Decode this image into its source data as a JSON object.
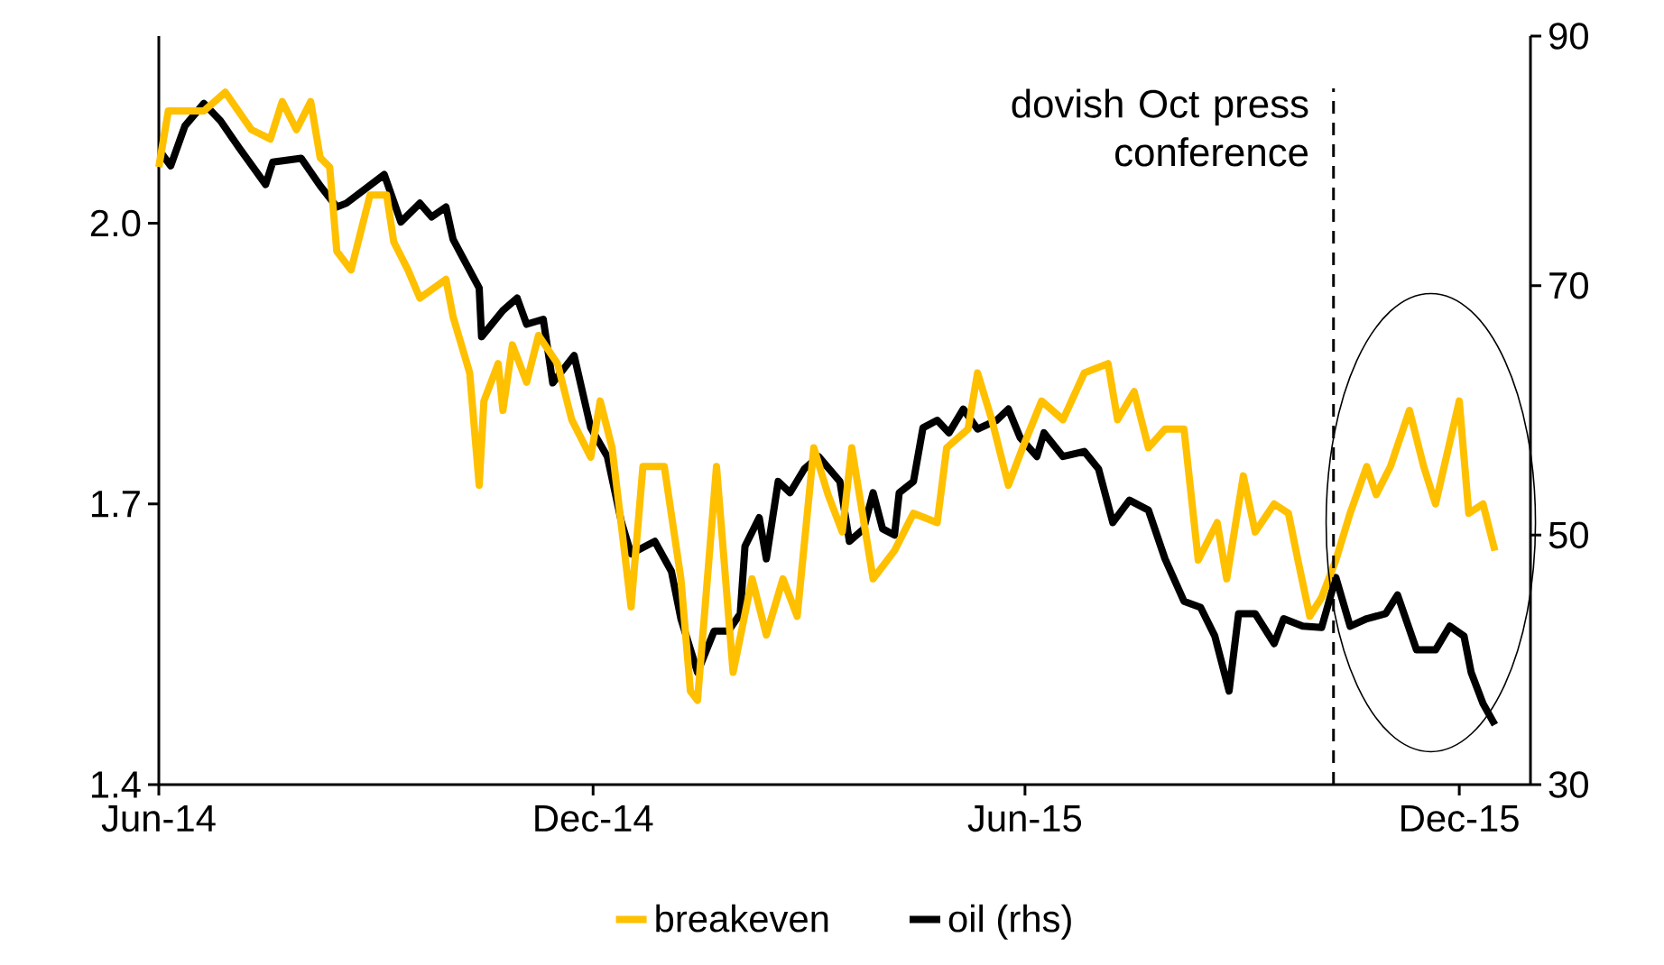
{
  "chart_data": {
    "type": "line",
    "xlim": [
      "2014-06-01",
      "2015-12-31"
    ],
    "xticks": [
      {
        "value": "2014-06-01",
        "label": "Jun-14"
      },
      {
        "value": "2014-12-01",
        "label": "Dec-14"
      },
      {
        "value": "2015-06-01",
        "label": "Jun-15"
      },
      {
        "value": "2015-12-01",
        "label": "Dec-15"
      }
    ],
    "ylim": [
      1.4,
      2.2
    ],
    "yticks": [
      1.4,
      1.7,
      {
        "value": 2,
        "label": "2.0"
      }
    ],
    "y2lim": [
      30,
      90
    ],
    "y2ticks": [
      30,
      50,
      70,
      90
    ],
    "legend": "bottom",
    "line_style": "solid",
    "marker": "none",
    "ref_lines": [
      {
        "axis": "x",
        "value": "2015-10-09",
        "label": "dovish Oct press conference",
        "line_style": "dashed",
        "color": "#000000"
      }
    ],
    "series": [
      {
        "name": "breakeven",
        "color": "#ffc000",
        "x": [
          "2014-06-01",
          "2014-06-05",
          "2014-06-20",
          "2014-06-29",
          "2014-07-10",
          "2014-07-18",
          "2014-07-23",
          "2014-07-29",
          "2014-08-04",
          "2014-08-08",
          "2014-08-12",
          "2014-08-15",
          "2014-08-21",
          "2014-08-29",
          "2014-09-05",
          "2014-09-08",
          "2014-09-14",
          "2014-09-19",
          "2014-09-30",
          "2014-10-03",
          "2014-10-10",
          "2014-10-14",
          "2014-10-16",
          "2014-10-22",
          "2014-10-24",
          "2014-10-28",
          "2014-11-03",
          "2014-11-08",
          "2014-11-16",
          "2014-11-22",
          "2014-11-30",
          "2014-12-04",
          "2014-12-09",
          "2014-12-17",
          "2014-12-22",
          "2014-12-31",
          "2015-01-07",
          "2015-01-11",
          "2015-01-14",
          "2015-01-22",
          "2015-01-29",
          "2015-02-06",
          "2015-02-12",
          "2015-02-19",
          "2015-02-25",
          "2015-03-04",
          "2015-03-10",
          "2015-03-16",
          "2015-03-20",
          "2015-03-29",
          "2015-04-07",
          "2015-04-15",
          "2015-04-25",
          "2015-04-29",
          "2015-05-08",
          "2015-05-12",
          "2015-05-18",
          "2015-05-25",
          "2015-05-31",
          "2015-06-08",
          "2015-06-17",
          "2015-06-26",
          "2015-07-06",
          "2015-07-10",
          "2015-07-17",
          "2015-07-23",
          "2015-07-30",
          "2015-08-07",
          "2015-08-13",
          "2015-08-21",
          "2015-08-25",
          "2015-09-01",
          "2015-09-06",
          "2015-09-14",
          "2015-09-20",
          "2015-09-24",
          "2015-09-29",
          "2015-10-04",
          "2015-10-10",
          "2015-10-16",
          "2015-10-23",
          "2015-10-27",
          "2015-11-02",
          "2015-11-10",
          "2015-11-16",
          "2015-11-21",
          "2015-12-01",
          "2015-12-05",
          "2015-12-11",
          "2015-12-16"
        ],
        "values": [
          2.06,
          2.12,
          2.12,
          2.14,
          2.1,
          2.09,
          2.13,
          2.1,
          2.13,
          2.07,
          2.06,
          1.97,
          1.95,
          2.03,
          2.03,
          1.98,
          1.95,
          1.92,
          1.94,
          1.9,
          1.84,
          1.72,
          1.81,
          1.85,
          1.8,
          1.87,
          1.83,
          1.88,
          1.85,
          1.79,
          1.75,
          1.81,
          1.76,
          1.59,
          1.74,
          1.74,
          1.62,
          1.5,
          1.49,
          1.74,
          1.52,
          1.62,
          1.56,
          1.62,
          1.58,
          1.76,
          1.71,
          1.67,
          1.76,
          1.62,
          1.65,
          1.69,
          1.68,
          1.76,
          1.78,
          1.84,
          1.79,
          1.72,
          1.76,
          1.81,
          1.79,
          1.84,
          1.85,
          1.79,
          1.82,
          1.76,
          1.78,
          1.78,
          1.64,
          1.68,
          1.62,
          1.73,
          1.67,
          1.7,
          1.69,
          1.64,
          1.58,
          1.6,
          1.64,
          1.69,
          1.74,
          1.71,
          1.74,
          1.8,
          1.74,
          1.7,
          1.81,
          1.69,
          1.7,
          1.65
        ]
      },
      {
        "name": "oil (rhs)",
        "color": "#000000",
        "axis": "y2",
        "x": [
          "2014-06-01",
          "2014-06-06",
          "2014-06-12",
          "2014-06-20",
          "2014-06-27",
          "2014-07-05",
          "2014-07-16",
          "2014-07-19",
          "2014-07-31",
          "2014-08-08",
          "2014-08-15",
          "2014-08-19",
          "2014-09-04",
          "2014-09-11",
          "2014-09-19",
          "2014-09-24",
          "2014-09-30",
          "2014-10-03",
          "2014-10-14",
          "2014-10-15",
          "2014-10-24",
          "2014-10-30",
          "2014-11-03",
          "2014-11-10",
          "2014-11-14",
          "2014-11-23",
          "2014-11-30",
          "2014-12-07",
          "2014-12-13",
          "2014-12-17",
          "2014-12-27",
          "2015-01-03",
          "2015-01-07",
          "2015-01-14",
          "2015-01-21",
          "2015-01-27",
          "2015-02-01",
          "2015-02-03",
          "2015-02-09",
          "2015-02-12",
          "2015-02-17",
          "2015-02-22",
          "2015-02-28",
          "2015-03-06",
          "2015-03-15",
          "2015-03-19",
          "2015-03-25",
          "2015-03-29",
          "2015-04-02",
          "2015-04-07",
          "2015-04-09",
          "2015-04-15",
          "2015-04-19",
          "2015-04-25",
          "2015-04-30",
          "2015-05-06",
          "2015-05-12",
          "2015-05-20",
          "2015-05-25",
          "2015-05-30",
          "2015-06-06",
          "2015-06-09",
          "2015-06-17",
          "2015-06-26",
          "2015-07-02",
          "2015-07-08",
          "2015-07-15",
          "2015-07-23",
          "2015-07-30",
          "2015-08-07",
          "2015-08-14",
          "2015-08-20",
          "2015-08-26",
          "2015-08-30",
          "2015-09-06",
          "2015-09-14",
          "2015-09-18",
          "2015-09-26",
          "2015-10-04",
          "2015-10-10",
          "2015-10-16",
          "2015-10-23",
          "2015-10-31",
          "2015-11-05",
          "2015-11-13",
          "2015-11-21",
          "2015-11-27",
          "2015-12-03",
          "2015-12-06",
          "2015-12-11",
          "2015-12-16"
        ],
        "values": [
          80.9,
          79.6,
          82.8,
          84.6,
          83.2,
          81.0,
          78.1,
          79.9,
          80.2,
          78.0,
          76.3,
          76.6,
          78.9,
          75.1,
          76.6,
          75.5,
          76.3,
          73.7,
          69.8,
          65.9,
          68.0,
          69.0,
          66.9,
          67.3,
          62.2,
          64.4,
          58.6,
          56.3,
          51.0,
          48.5,
          49.5,
          47.1,
          43.3,
          39.0,
          42.3,
          42.3,
          43.7,
          49.1,
          51.4,
          48.1,
          54.3,
          53.4,
          55.3,
          56.3,
          54.3,
          49.5,
          50.5,
          53.4,
          50.5,
          50.0,
          53.4,
          54.3,
          58.6,
          59.2,
          58.2,
          60.1,
          58.5,
          59.2,
          60.1,
          57.8,
          56.3,
          58.2,
          56.3,
          56.7,
          55.3,
          51.0,
          52.8,
          52.0,
          48.1,
          44.7,
          44.2,
          41.9,
          37.5,
          43.7,
          43.7,
          41.3,
          43.3,
          42.7,
          42.6,
          46.6,
          42.7,
          43.3,
          43.7,
          45.2,
          40.8,
          40.8,
          42.7,
          41.9,
          39.0,
          36.5,
          34.8
        ]
      }
    ]
  }
}
